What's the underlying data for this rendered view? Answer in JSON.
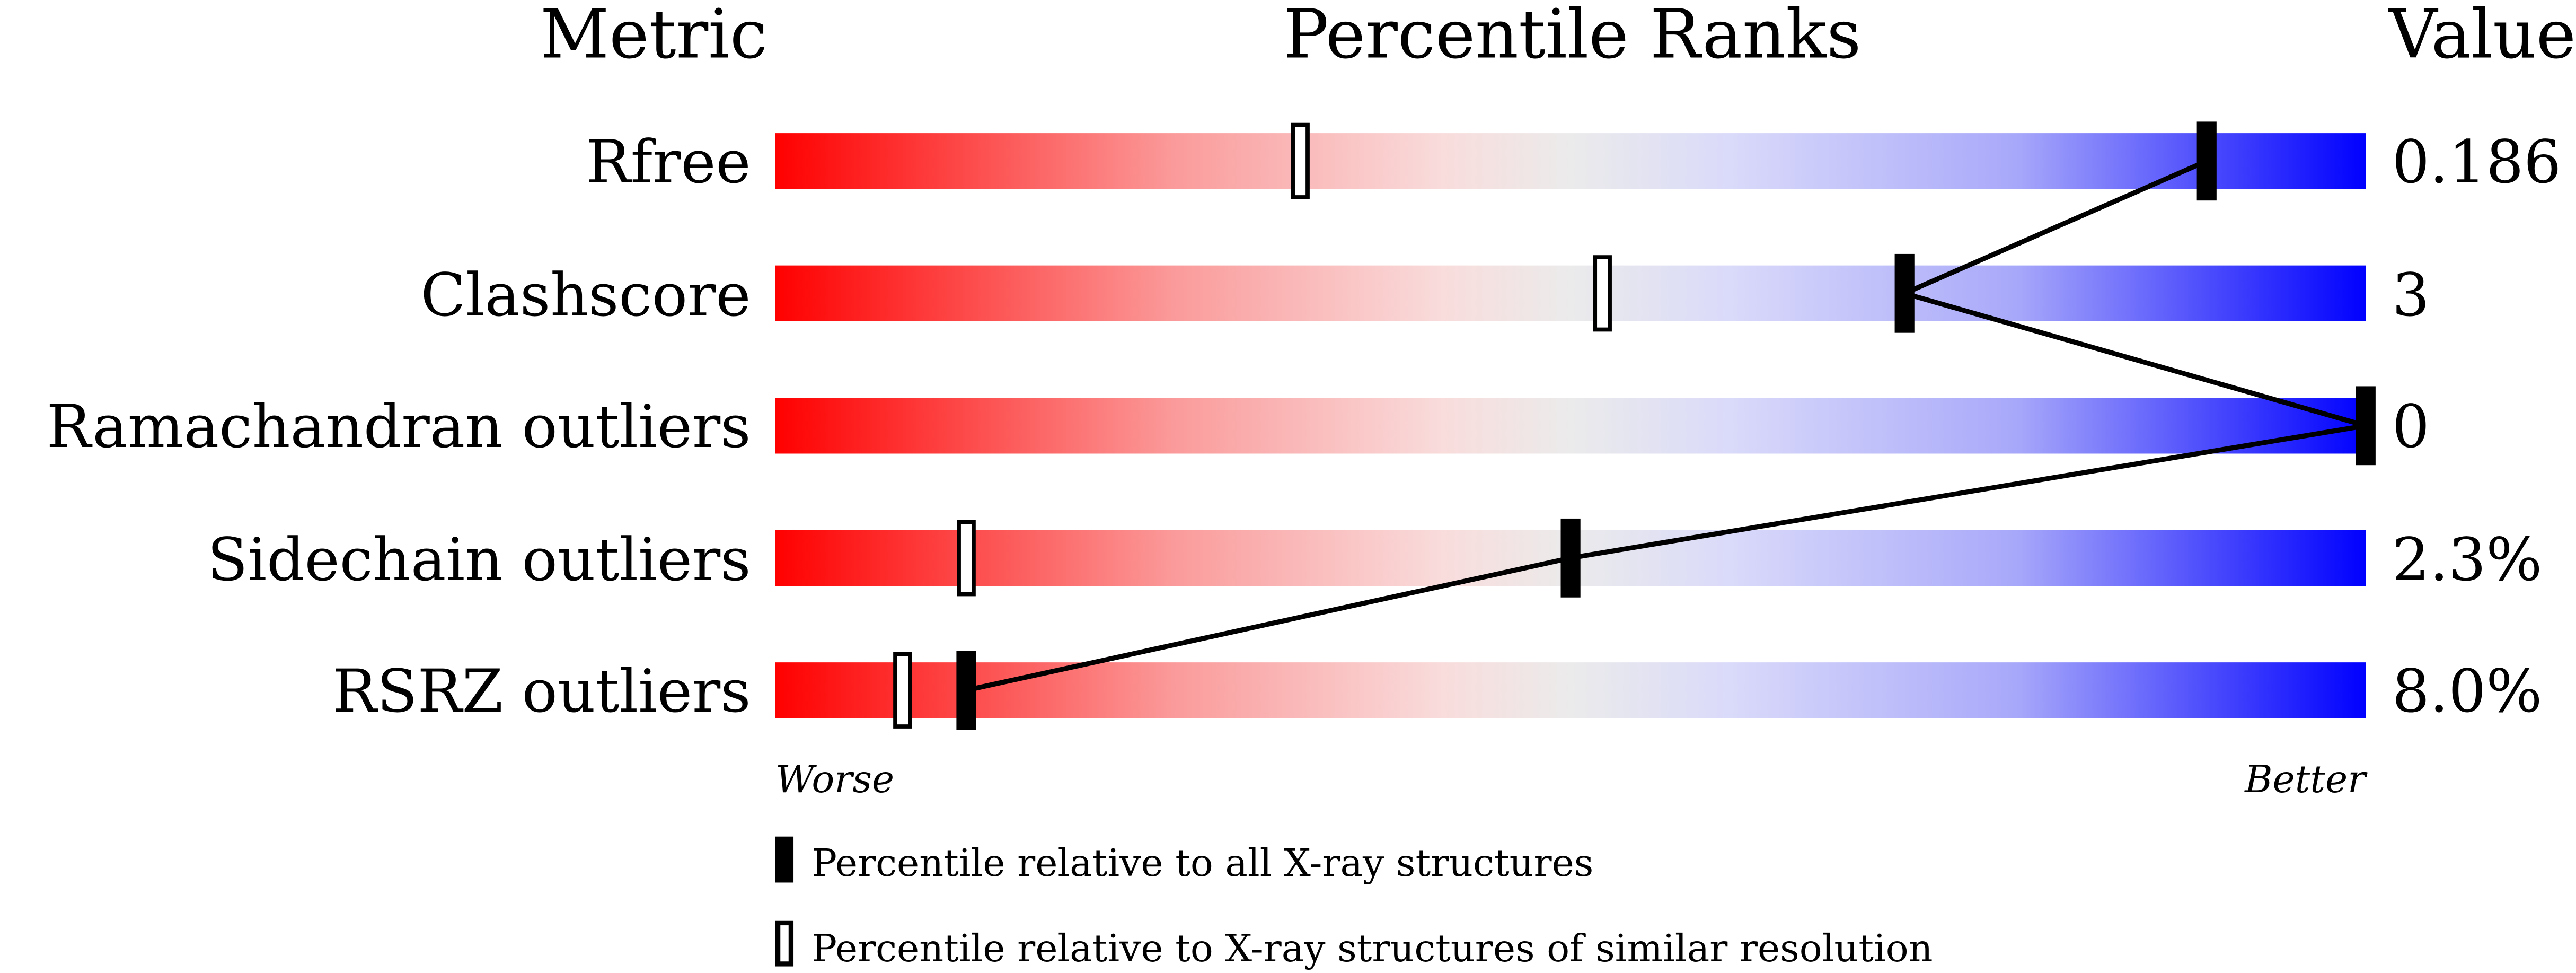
{
  "chart_data": {
    "type": "percentile-slider",
    "headers": {
      "metric": "Metric",
      "ranks": "Percentile Ranks",
      "value": "Value"
    },
    "xlim": [
      0,
      100
    ],
    "axis_ends": {
      "left": "Worse",
      "right": "Better"
    },
    "colors": {
      "worse": "#ff0000",
      "middle": "#ebebeb",
      "better": "#0000ff",
      "marker": "#000000"
    },
    "rows": [
      {
        "metric": "Rfree",
        "value": "0.186",
        "percentile_all": 90,
        "percentile_similar": 33
      },
      {
        "metric": "Clashscore",
        "value": "3",
        "percentile_all": 71,
        "percentile_similar": 52
      },
      {
        "metric": "Ramachandran outliers",
        "value": "0",
        "percentile_all": 100,
        "percentile_similar": 100
      },
      {
        "metric": "Sidechain outliers",
        "value": "2.3%",
        "percentile_all": 50,
        "percentile_similar": 12
      },
      {
        "metric": "RSRZ outliers",
        "value": "8.0%",
        "percentile_all": 12,
        "percentile_similar": 8
      }
    ],
    "legend": [
      {
        "marker": "filled",
        "label": "Percentile relative to all X-ray structures"
      },
      {
        "marker": "open",
        "label": "Percentile relative to X-ray structures of similar resolution"
      }
    ]
  }
}
